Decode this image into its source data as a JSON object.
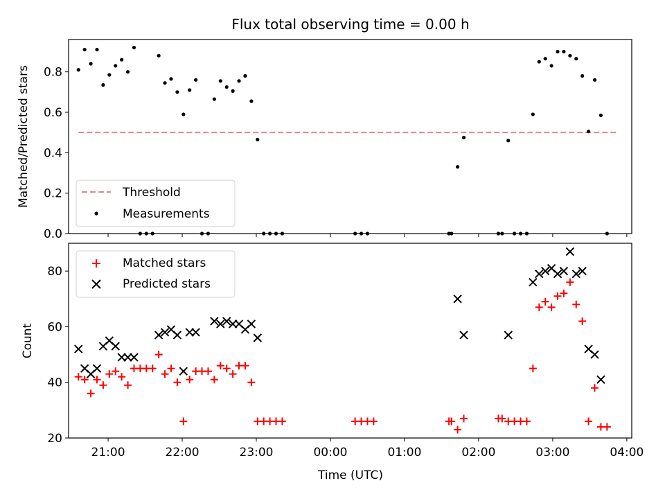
{
  "chart_data": [
    {
      "type": "scatter",
      "title": "Flux total observing time = 0.00 h",
      "ylabel": "Matched/Predicted stars",
      "xlim": [
        "20:28",
        "04:04"
      ],
      "ylim": [
        0,
        0.96
      ],
      "yticks": [
        "0.0",
        "0.2",
        "0.4",
        "0.6",
        "0.8"
      ],
      "threshold": {
        "name": "Threshold",
        "value": 0.5,
        "x_range": [
          "20:36",
          "03:52"
        ],
        "color": "#f08080",
        "style": "dashed"
      },
      "legend": {
        "position": "lower-left",
        "entries": [
          "Threshold",
          "Measurements"
        ]
      },
      "series": [
        {
          "name": "Measurements",
          "color": "#000000",
          "marker": "dot",
          "points": [
            [
              "20:36",
              0.81
            ],
            [
              "20:41",
              0.91
            ],
            [
              "20:46",
              0.84
            ],
            [
              "20:51",
              0.91
            ],
            [
              "20:56",
              0.735
            ],
            [
              "21:01",
              0.785
            ],
            [
              "21:06",
              0.83
            ],
            [
              "21:11",
              0.86
            ],
            [
              "21:16",
              0.8
            ],
            [
              "21:21",
              0.92
            ],
            [
              "21:26",
              0.0
            ],
            [
              "21:31",
              0.0
            ],
            [
              "21:36",
              0.0
            ],
            [
              "21:41",
              0.88
            ],
            [
              "21:46",
              0.745
            ],
            [
              "21:51",
              0.765
            ],
            [
              "21:56",
              0.7
            ],
            [
              "22:01",
              0.59
            ],
            [
              "22:06",
              0.71
            ],
            [
              "22:11",
              0.76
            ],
            [
              "22:16",
              0.0
            ],
            [
              "22:21",
              0.0
            ],
            [
              "22:26",
              0.665
            ],
            [
              "22:31",
              0.755
            ],
            [
              "22:36",
              0.725
            ],
            [
              "22:41",
              0.705
            ],
            [
              "22:46",
              0.755
            ],
            [
              "22:51",
              0.78
            ],
            [
              "22:56",
              0.655
            ],
            [
              "23:01",
              0.465
            ],
            [
              "23:06",
              0.0
            ],
            [
              "23:11",
              0.0
            ],
            [
              "23:16",
              0.0
            ],
            [
              "23:21",
              0.0
            ],
            [
              "00:20",
              0.0
            ],
            [
              "00:25",
              0.0
            ],
            [
              "00:30",
              0.0
            ],
            [
              "01:36",
              0.0
            ],
            [
              "01:38",
              0.0
            ],
            [
              "01:43",
              0.33
            ],
            [
              "01:48",
              0.475
            ],
            [
              "02:16",
              0.0
            ],
            [
              "02:19",
              0.0
            ],
            [
              "02:24",
              0.46
            ],
            [
              "02:29",
              0.0
            ],
            [
              "02:34",
              0.0
            ],
            [
              "02:39",
              0.0
            ],
            [
              "02:44",
              0.59
            ],
            [
              "02:49",
              0.85
            ],
            [
              "02:54",
              0.865
            ],
            [
              "02:59",
              0.83
            ],
            [
              "03:04",
              0.9
            ],
            [
              "03:09",
              0.9
            ],
            [
              "03:14",
              0.88
            ],
            [
              "03:19",
              0.865
            ],
            [
              "03:24",
              0.78
            ],
            [
              "03:29",
              0.505
            ],
            [
              "03:34",
              0.76
            ],
            [
              "03:39",
              0.585
            ],
            [
              "03:44",
              0.0
            ]
          ]
        }
      ]
    },
    {
      "type": "scatter",
      "xlabel": "Time (UTC)",
      "ylabel": "Count",
      "xlim": [
        "20:28",
        "04:04"
      ],
      "ylim": [
        20,
        90
      ],
      "yticks": [
        "20",
        "40",
        "60",
        "80"
      ],
      "xticks": [
        "21:00",
        "22:00",
        "23:00",
        "00:00",
        "01:00",
        "02:00",
        "03:00",
        "04:00"
      ],
      "legend": {
        "position": "top-left",
        "entries": [
          "Matched stars",
          "Predicted stars"
        ]
      },
      "series": [
        {
          "name": "Matched stars",
          "color": "#ff0000",
          "marker": "plus",
          "points": [
            [
              "20:36",
              42
            ],
            [
              "20:41",
              41
            ],
            [
              "20:46",
              36
            ],
            [
              "20:51",
              41
            ],
            [
              "20:56",
              39
            ],
            [
              "21:01",
              43
            ],
            [
              "21:06",
              44
            ],
            [
              "21:11",
              42
            ],
            [
              "21:16",
              39
            ],
            [
              "21:21",
              45
            ],
            [
              "21:26",
              45
            ],
            [
              "21:31",
              45
            ],
            [
              "21:36",
              45
            ],
            [
              "21:41",
              50
            ],
            [
              "21:46",
              43
            ],
            [
              "21:51",
              45
            ],
            [
              "21:56",
              40
            ],
            [
              "22:01",
              26
            ],
            [
              "22:06",
              41
            ],
            [
              "22:11",
              44
            ],
            [
              "22:16",
              44
            ],
            [
              "22:21",
              44
            ],
            [
              "22:26",
              41
            ],
            [
              "22:31",
              46
            ],
            [
              "22:36",
              45
            ],
            [
              "22:41",
              43
            ],
            [
              "22:46",
              46
            ],
            [
              "22:51",
              46
            ],
            [
              "22:56",
              40
            ],
            [
              "23:01",
              26
            ],
            [
              "23:06",
              26
            ],
            [
              "23:11",
              26
            ],
            [
              "23:16",
              26
            ],
            [
              "23:21",
              26
            ],
            [
              "00:20",
              26
            ],
            [
              "00:25",
              26
            ],
            [
              "00:30",
              26
            ],
            [
              "00:35",
              26
            ],
            [
              "01:36",
              26
            ],
            [
              "01:38",
              26
            ],
            [
              "01:43",
              23
            ],
            [
              "01:48",
              27
            ],
            [
              "02:16",
              27
            ],
            [
              "02:19",
              27
            ],
            [
              "02:24",
              26
            ],
            [
              "02:29",
              26
            ],
            [
              "02:34",
              26
            ],
            [
              "02:39",
              26
            ],
            [
              "02:44",
              45
            ],
            [
              "02:49",
              67
            ],
            [
              "02:54",
              69
            ],
            [
              "02:59",
              67
            ],
            [
              "03:04",
              71
            ],
            [
              "03:09",
              72
            ],
            [
              "03:14",
              76
            ],
            [
              "03:19",
              68
            ],
            [
              "03:24",
              62
            ],
            [
              "03:29",
              26
            ],
            [
              "03:34",
              38
            ],
            [
              "03:39",
              24
            ],
            [
              "03:44",
              24
            ]
          ]
        },
        {
          "name": "Predicted stars",
          "color": "#000000",
          "marker": "x",
          "points": [
            [
              "20:36",
              52
            ],
            [
              "20:41",
              45
            ],
            [
              "20:46",
              43
            ],
            [
              "20:51",
              45
            ],
            [
              "20:56",
              53
            ],
            [
              "21:01",
              55
            ],
            [
              "21:06",
              53
            ],
            [
              "21:11",
              49
            ],
            [
              "21:16",
              49
            ],
            [
              "21:21",
              49
            ],
            [
              "21:41",
              57
            ],
            [
              "21:46",
              58
            ],
            [
              "21:51",
              59
            ],
            [
              "21:56",
              57
            ],
            [
              "22:01",
              44
            ],
            [
              "22:06",
              58
            ],
            [
              "22:11",
              58
            ],
            [
              "22:26",
              62
            ],
            [
              "22:31",
              61
            ],
            [
              "22:36",
              62
            ],
            [
              "22:41",
              61
            ],
            [
              "22:46",
              61
            ],
            [
              "22:51",
              59
            ],
            [
              "22:56",
              61
            ],
            [
              "23:01",
              56
            ],
            [
              "01:43",
              70
            ],
            [
              "01:48",
              57
            ],
            [
              "02:24",
              57
            ],
            [
              "02:44",
              76
            ],
            [
              "02:49",
              79
            ],
            [
              "02:54",
              80
            ],
            [
              "02:59",
              81
            ],
            [
              "03:04",
              79
            ],
            [
              "03:09",
              80
            ],
            [
              "03:14",
              87
            ],
            [
              "03:19",
              79
            ],
            [
              "03:24",
              80
            ],
            [
              "03:29",
              52
            ],
            [
              "03:34",
              50
            ],
            [
              "03:39",
              41
            ]
          ]
        }
      ]
    }
  ]
}
